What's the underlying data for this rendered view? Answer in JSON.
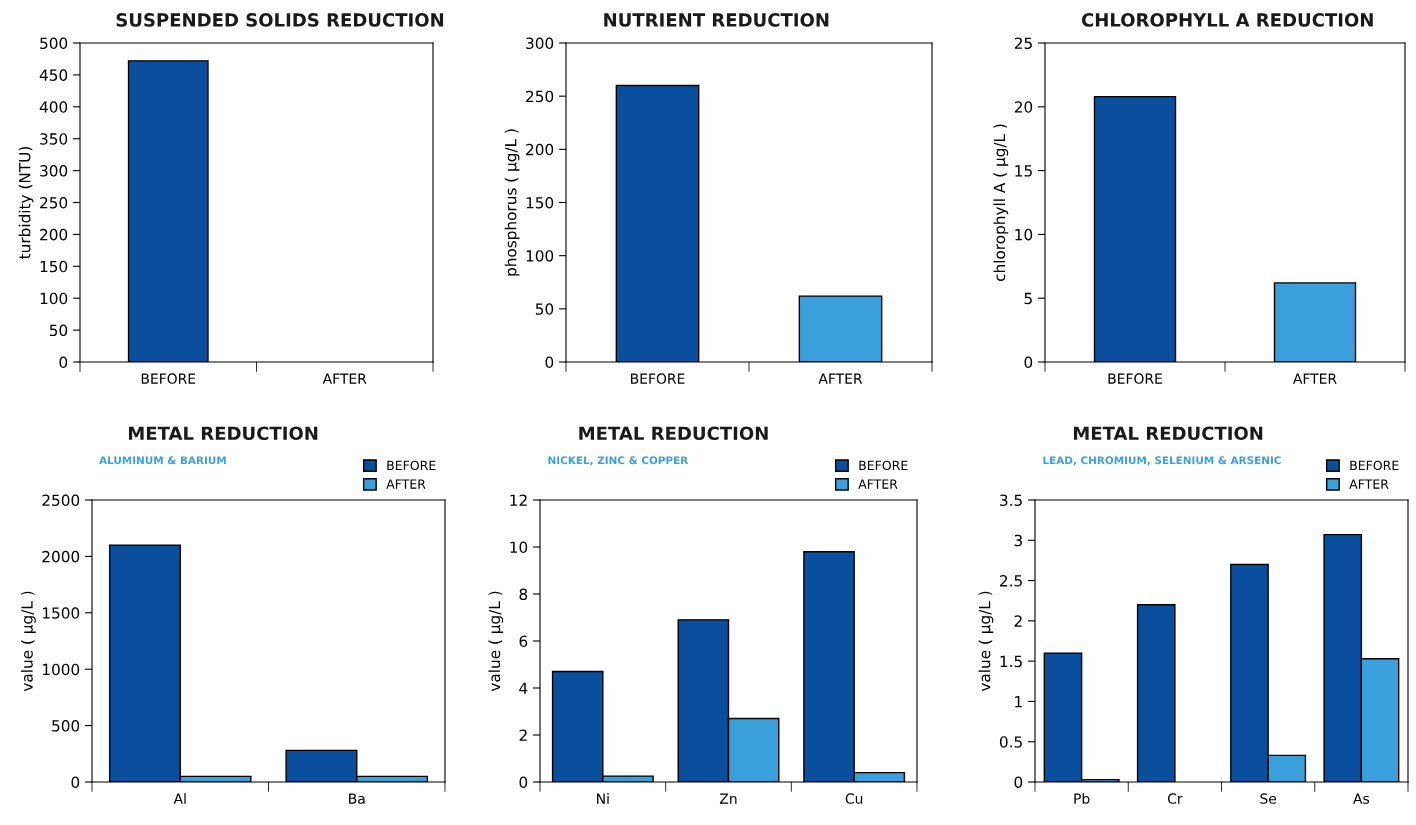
{
  "chart_data": [
    {
      "type": "bar",
      "title": "SUSPENDED SOLIDS REDUCTION",
      "ylabel": "turbidity (NTU)",
      "categories": [
        "BEFORE",
        "AFTER"
      ],
      "values": [
        472,
        0
      ],
      "colors": [
        "#0a4f9e",
        "#3aa0dc"
      ],
      "ylim": [
        0,
        500
      ],
      "yticks": [
        0,
        50,
        100,
        150,
        200,
        250,
        300,
        350,
        400,
        450,
        500
      ]
    },
    {
      "type": "bar",
      "title": "NUTRIENT REDUCTION",
      "ylabel": "phosphorus ( µg/L )",
      "categories": [
        "BEFORE",
        "AFTER"
      ],
      "values": [
        260,
        62
      ],
      "colors": [
        "#0a4f9e",
        "#3aa0dc"
      ],
      "ylim": [
        0,
        300
      ],
      "yticks": [
        0,
        50,
        100,
        150,
        200,
        250,
        300
      ]
    },
    {
      "type": "bar",
      "title": "CHLOROPHYLL A REDUCTION",
      "ylabel": "chlorophyll A ( µg/L )",
      "categories": [
        "BEFORE",
        "AFTER"
      ],
      "values": [
        20.8,
        6.2
      ],
      "colors": [
        "#0a4f9e",
        "#3aa0dc"
      ],
      "ylim": [
        0,
        25
      ],
      "yticks": [
        0,
        5,
        10,
        15,
        20,
        25
      ]
    },
    {
      "type": "bar",
      "title": "METAL REDUCTION",
      "subtitle": "ALUMINUM & BARIUM",
      "ylabel": "value ( µg/L )",
      "categories": [
        "Al",
        "Ba"
      ],
      "legend": "top right",
      "ylim": [
        0,
        2500
      ],
      "yticks": [
        0,
        500,
        1000,
        1500,
        2000,
        2500
      ],
      "series": [
        {
          "name": "BEFORE",
          "color": "#0a4f9e",
          "values": [
            2100,
            280
          ]
        },
        {
          "name": "AFTER",
          "color": "#3aa0dc",
          "values": [
            50,
            50
          ]
        }
      ]
    },
    {
      "type": "bar",
      "title": "METAL REDUCTION",
      "subtitle": "NICKEL, ZINC & COPPER",
      "ylabel": "value ( µg/L )",
      "categories": [
        "Ni",
        "Zn",
        "Cu"
      ],
      "legend": "top right",
      "ylim": [
        0,
        12
      ],
      "yticks": [
        0,
        2,
        4,
        6,
        8,
        10,
        12
      ],
      "series": [
        {
          "name": "BEFORE",
          "color": "#0a4f9e",
          "values": [
            4.7,
            6.9,
            9.8
          ]
        },
        {
          "name": "AFTER",
          "color": "#3aa0dc",
          "values": [
            0.25,
            2.7,
            0.4
          ]
        }
      ]
    },
    {
      "type": "bar",
      "title": "METAL REDUCTION",
      "subtitle": "LEAD, CHROMIUM, SELENIUM & ARSENIC",
      "ylabel": "value ( µg/L )",
      "categories": [
        "Pb",
        "Cr",
        "Se",
        "As"
      ],
      "legend": "top right",
      "ylim": [
        0,
        3.5
      ],
      "yticks": [
        0,
        0.5,
        1,
        1.5,
        2,
        2.5,
        3,
        3.5
      ],
      "series": [
        {
          "name": "BEFORE",
          "color": "#0a4f9e",
          "values": [
            1.6,
            2.2,
            2.7,
            3.07
          ]
        },
        {
          "name": "AFTER",
          "color": "#3aa0dc",
          "values": [
            0.03,
            0,
            0.33,
            1.53
          ]
        }
      ]
    }
  ]
}
